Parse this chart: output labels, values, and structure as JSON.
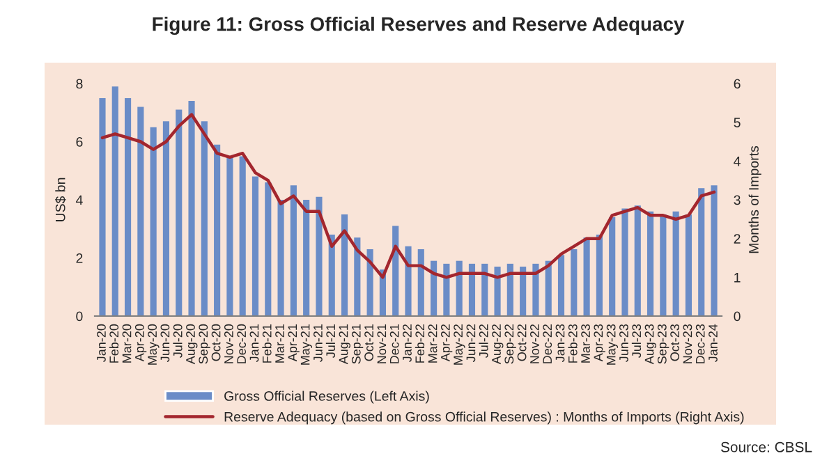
{
  "chart_data": {
    "type": "bar",
    "title": "Figure 11: Gross Official Reserves and Reserve Adequacy",
    "categories": [
      "Jan-20",
      "Feb-20",
      "Mar-20",
      "Apr-20",
      "May-20",
      "Jun-20",
      "Jul-20",
      "Aug-20",
      "Sep-20",
      "Oct-20",
      "Nov-20",
      "Dec-20",
      "Jan-21",
      "Feb-21",
      "Mar-21",
      "Apr-21",
      "May-21",
      "Jun-21",
      "Jul-21",
      "Aug-21",
      "Sep-21",
      "Oct-21",
      "Nov-21",
      "Dec-21",
      "Jan-22",
      "Feb-22",
      "Mar-22",
      "Apr-22",
      "May-22",
      "Jun-22",
      "Jul-22",
      "Aug-22",
      "Sep-22",
      "Oct-22",
      "Nov-22",
      "Dec-22",
      "Jan-23",
      "Feb-23",
      "Mar-23",
      "Apr-23",
      "May-23",
      "Jun-23",
      "Jul-23",
      "Aug-23",
      "Sep-23",
      "Oct-23",
      "Nov-23",
      "Dec-23",
      "Jan-24"
    ],
    "series": [
      {
        "name": "Gross Official Reserves (Left Axis)",
        "color": "#6a8cc7",
        "values": [
          7.5,
          7.9,
          7.5,
          7.2,
          6.5,
          6.7,
          7.1,
          7.4,
          6.7,
          5.9,
          5.5,
          5.5,
          4.8,
          4.6,
          4.0,
          4.5,
          4.0,
          4.1,
          2.8,
          3.5,
          2.7,
          2.3,
          1.6,
          3.1,
          2.4,
          2.3,
          1.9,
          1.8,
          1.9,
          1.8,
          1.8,
          1.7,
          1.8,
          1.7,
          1.8,
          1.9,
          2.1,
          2.3,
          2.7,
          2.8,
          3.4,
          3.7,
          3.8,
          3.6,
          3.5,
          3.6,
          3.5,
          4.4,
          4.5
        ]
      },
      {
        "name": "Reserve Adequacy (based on Gross Official Reserves) : Months of Imports (Right Axis)",
        "type": "line",
        "axis": "y2",
        "color": "#a3262e",
        "values": [
          4.6,
          4.7,
          4.6,
          4.5,
          4.3,
          4.5,
          4.9,
          5.2,
          4.7,
          4.2,
          4.1,
          4.2,
          3.7,
          3.5,
          2.9,
          3.1,
          2.7,
          2.7,
          1.8,
          2.2,
          1.7,
          1.4,
          1.0,
          1.8,
          1.3,
          1.3,
          1.1,
          1.0,
          1.1,
          1.1,
          1.1,
          1.0,
          1.1,
          1.1,
          1.1,
          1.3,
          1.6,
          1.8,
          2.0,
          2.0,
          2.6,
          2.7,
          2.8,
          2.6,
          2.6,
          2.5,
          2.6,
          3.1,
          3.2
        ]
      }
    ],
    "ylabel": "US$ bn",
    "y2label": "Months of Imports",
    "ylim": [
      0,
      8
    ],
    "yticks": [
      0,
      2,
      4,
      6,
      8
    ],
    "y2lim": [
      0,
      6
    ],
    "y2ticks": [
      0,
      1,
      2,
      3,
      4,
      5,
      6
    ],
    "legend": "bottom",
    "grid": false,
    "marker": "none",
    "line_style": "solid",
    "annotations": [
      "Source: CBSL"
    ]
  }
}
